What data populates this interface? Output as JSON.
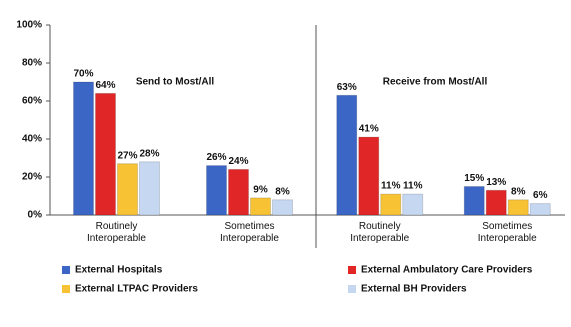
{
  "chart_data": [
    {
      "type": "bar",
      "title": "Send to Most/All",
      "categories": [
        "Routinely Interoperable",
        "Sometimes Interoperable"
      ],
      "ylim": [
        0,
        100
      ],
      "yticks": [
        {
          "value": 0,
          "label": "0%"
        },
        {
          "value": 20,
          "label": "20%"
        },
        {
          "value": 40,
          "label": "40%"
        },
        {
          "value": 60,
          "label": "60%"
        },
        {
          "value": 80,
          "label": "80%"
        },
        {
          "value": 100,
          "label": "100%"
        }
      ],
      "series": [
        {
          "name": "External Hospitals",
          "color": "#3b66c6",
          "values": [
            70,
            26
          ],
          "value_labels": [
            "70%",
            "26%"
          ]
        },
        {
          "name": "External Ambulatory Care Providers",
          "color": "#e02626",
          "values": [
            64,
            24
          ],
          "value_labels": [
            "64%",
            "24%"
          ]
        },
        {
          "name": "External LTPAC Providers",
          "color": "#f7c334",
          "values": [
            27,
            9
          ],
          "value_labels": [
            "27%",
            "9%"
          ]
        },
        {
          "name": "External BH Providers",
          "color": "#c6d8f1",
          "values": [
            28,
            8
          ],
          "value_labels": [
            "28%",
            "8%"
          ]
        }
      ]
    },
    {
      "type": "bar",
      "title": "Receive from Most/All",
      "categories": [
        "Routinely Interoperable",
        "Sometimes Interoperable"
      ],
      "ylim": [
        0,
        100
      ],
      "series": [
        {
          "color": "#3b66c6",
          "values": [
            63,
            15
          ],
          "value_labels": [
            "63%",
            "15%"
          ]
        },
        {
          "color": "#e02626",
          "values": [
            41,
            13
          ],
          "value_labels": [
            "41%",
            "13%"
          ]
        },
        {
          "color": "#f7c334",
          "values": [
            11,
            8
          ],
          "value_labels": [
            "11%",
            "8%"
          ]
        },
        {
          "color": "#c6d8f1",
          "values": [
            11,
            6
          ],
          "value_labels": [
            "11%",
            "6%"
          ]
        }
      ]
    }
  ]
}
